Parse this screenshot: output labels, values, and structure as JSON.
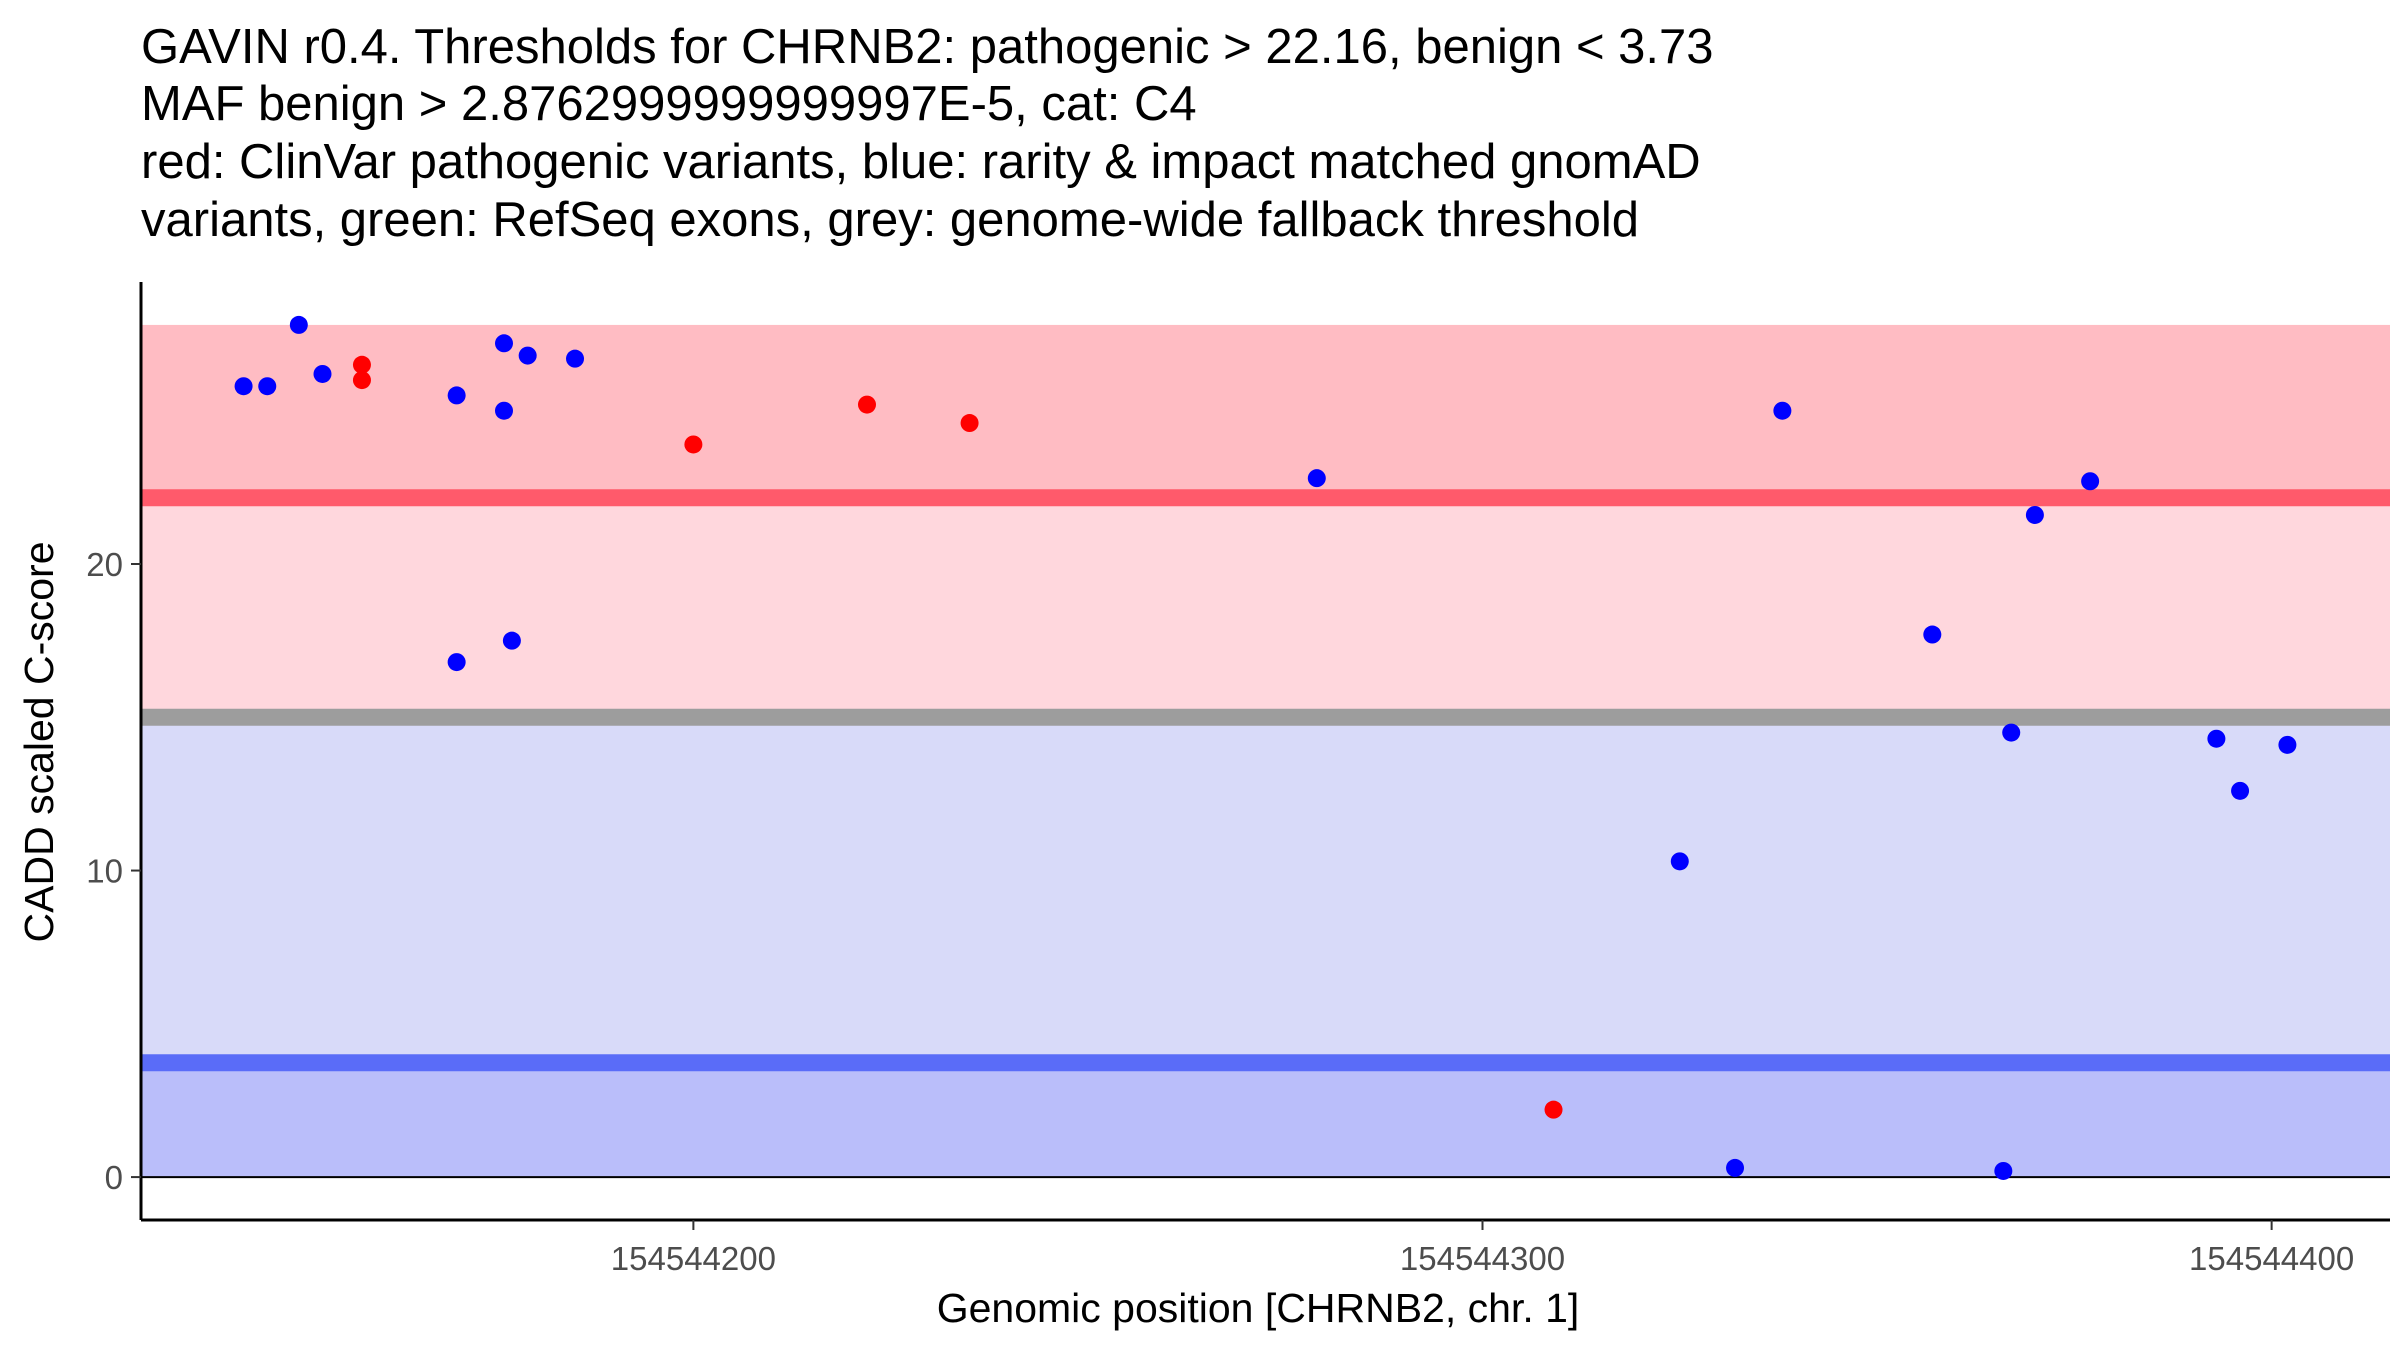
{
  "chart_data": {
    "type": "scatter",
    "title_lines": [
      "GAVIN r0.4. Thresholds for CHRNB2: pathogenic > 22.16, benign < 3.73",
      "MAF benign > 2.8762999999999997E-5, cat: C4",
      "red: ClinVar pathogenic variants, blue: rarity & impact matched gnomAD",
      "variants, green: RefSeq exons, grey: genome-wide fallback threshold"
    ],
    "xlabel": "Genomic position [CHRNB2, chr. 1]",
    "ylabel": "CADD scaled C-score",
    "xlim": [
      154544130,
      154544415
    ],
    "ylim": [
      -1.4,
      29.2
    ],
    "x_ticks": [
      {
        "value": 154544200,
        "label": "154544200"
      },
      {
        "value": 154544300,
        "label": "154544300"
      },
      {
        "value": 154544400,
        "label": "154544400"
      }
    ],
    "y_ticks": [
      {
        "value": 0,
        "label": "0"
      },
      {
        "value": 10,
        "label": "10"
      },
      {
        "value": 20,
        "label": "20"
      }
    ],
    "grid": false,
    "thresholds": {
      "pathogenic": 22.16,
      "benign": 3.73,
      "genome_wide_fallback": 15,
      "max_score": 27.8
    },
    "colors": {
      "pathogenic_band": "#ffbcc3",
      "vus_upper_band": "#ffd7dd",
      "vus_lower_band": "#d8daf9",
      "benign_band": "#babefa",
      "pathogenic_line": "#ff5a6b",
      "benign_line": "#5a6cf8",
      "fallback_line": "#9d9d9d",
      "pathogenic_point": "#ff0000",
      "gnomad_point": "#0000ff"
    },
    "series": [
      {
        "name": "ClinVar pathogenic variants",
        "color": "#ff0000",
        "points": [
          {
            "x": 154544158,
            "y": 26.5
          },
          {
            "x": 154544158,
            "y": 26.0
          },
          {
            "x": 154544200,
            "y": 23.9
          },
          {
            "x": 154544222,
            "y": 25.2
          },
          {
            "x": 154544235,
            "y": 24.6
          },
          {
            "x": 154544309,
            "y": 2.2
          }
        ]
      },
      {
        "name": "gnomAD matched variants",
        "color": "#0000ff",
        "points": [
          {
            "x": 154544143,
            "y": 25.8
          },
          {
            "x": 154544146,
            "y": 25.8
          },
          {
            "x": 154544150,
            "y": 27.8
          },
          {
            "x": 154544153,
            "y": 26.2
          },
          {
            "x": 154544170,
            "y": 25.5
          },
          {
            "x": 154544170,
            "y": 16.8
          },
          {
            "x": 154544176,
            "y": 27.2
          },
          {
            "x": 154544176,
            "y": 25.0
          },
          {
            "x": 154544177,
            "y": 17.5
          },
          {
            "x": 154544179,
            "y": 26.8
          },
          {
            "x": 154544185,
            "y": 26.7
          },
          {
            "x": 154544279,
            "y": 22.8
          },
          {
            "x": 154544325,
            "y": 10.3
          },
          {
            "x": 154544332,
            "y": 0.3
          },
          {
            "x": 154544338,
            "y": 25.0
          },
          {
            "x": 154544357,
            "y": 17.7
          },
          {
            "x": 154544366,
            "y": 0.2
          },
          {
            "x": 154544367,
            "y": 14.5
          },
          {
            "x": 154544370,
            "y": 21.6
          },
          {
            "x": 154544377,
            "y": 22.7
          },
          {
            "x": 154544393,
            "y": 14.3
          },
          {
            "x": 154544396,
            "y": 12.6
          },
          {
            "x": 154544402,
            "y": 14.1
          }
        ]
      }
    ]
  }
}
